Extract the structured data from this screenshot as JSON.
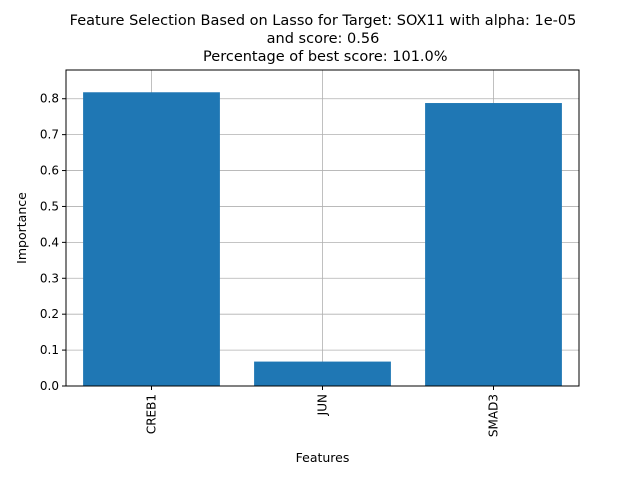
{
  "chart_data": {
    "type": "bar",
    "title_lines": [
      "Feature Selection Based on Lasso for Target: SOX11 with alpha: 1e-05",
      "and score: 0.56",
      " Percentage of best score: 101.0%"
    ],
    "xlabel": "Features",
    "ylabel": "Importance",
    "categories": [
      "CREB1",
      "JUN",
      "SMAD3"
    ],
    "values": [
      0.818,
      0.068,
      0.788
    ],
    "ylim": [
      0,
      0.88
    ],
    "yticks": [
      0.0,
      0.1,
      0.2,
      0.3,
      0.4,
      0.5,
      0.6,
      0.7,
      0.8
    ],
    "ytick_labels": [
      "0.0",
      "0.1",
      "0.2",
      "0.3",
      "0.4",
      "0.5",
      "0.6",
      "0.7",
      "0.8"
    ],
    "grid": true,
    "bar_color": "#1f77b4",
    "xtick_rotation": "vertical"
  }
}
